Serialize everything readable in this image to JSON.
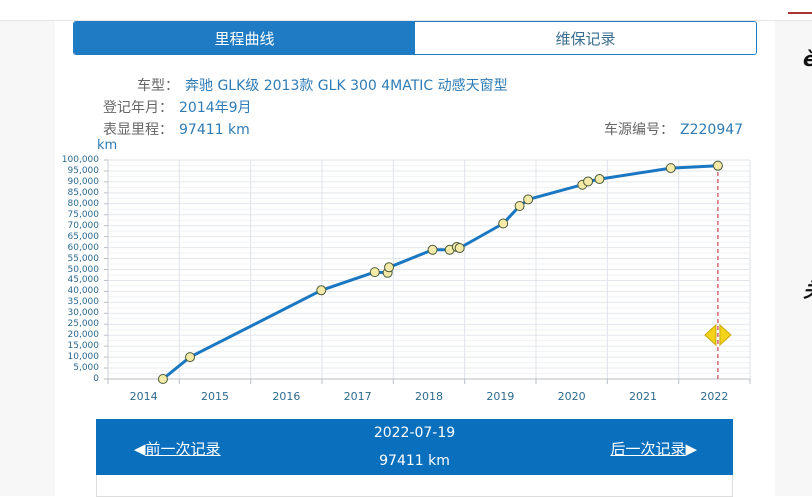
{
  "tabs": [
    {
      "label": "里程曲线",
      "active": true
    },
    {
      "label": "维保记录",
      "active": false
    }
  ],
  "vehicle": {
    "model_label": "车型：",
    "model_value": "奔驰 GLK级 2013款 GLK 300 4MATIC 动感天窗型",
    "reg_label": "登记年月：",
    "reg_value": "2014年9月",
    "odometer_label": "表显里程：",
    "odometer_value": "97411 km",
    "source_label": "车源编号：",
    "source_value": "Z220947"
  },
  "colors": {
    "accent": "#1e7bc4",
    "nav_bg": "#0a6fbd",
    "line": "#1a78c2",
    "marker_fill": "#f5eaa8",
    "marker_stroke": "#4a5a3a",
    "cursor_line": "#d0434f",
    "handle": "#f5d21a"
  },
  "chart_data": {
    "type": "line",
    "title": "",
    "xlabel": "",
    "ylabel": "km",
    "ylim": [
      0,
      100000
    ],
    "y_ticks": [
      "0",
      "5,000",
      "10,000",
      "15,000",
      "20,000",
      "25,000",
      "30,000",
      "35,000",
      "40,000",
      "45,000",
      "50,000",
      "55,000",
      "60,000",
      "65,000",
      "70,000",
      "75,000",
      "80,000",
      "85,000",
      "90,000",
      "95,000",
      "100,000"
    ],
    "x_ticks": [
      "2014",
      "2015",
      "2016",
      "2017",
      "2018",
      "2019",
      "2020",
      "2021",
      "2022"
    ],
    "xlim": [
      2014.0,
      2023.0
    ],
    "grid": true,
    "legend": "none",
    "series": [
      {
        "name": "里程",
        "x": [
          2014.77,
          2015.15,
          2016.99,
          2017.74,
          2017.92,
          2017.94,
          2018.55,
          2018.79,
          2018.89,
          2018.93,
          2019.54,
          2019.77,
          2019.89,
          2020.65,
          2020.73,
          2020.89,
          2021.89,
          2022.55
        ],
        "values": [
          0,
          10000,
          40500,
          48800,
          48500,
          51000,
          59000,
          59000,
          60300,
          59800,
          71000,
          79000,
          82000,
          88700,
          90200,
          91300,
          96300,
          97411
        ]
      }
    ],
    "cursor": {
      "x": 2022.55,
      "label_date": "2022-07-19",
      "label_value": "97411 km"
    }
  },
  "nav": {
    "prev_label": "前一次记录",
    "next_label": "后一次记录",
    "prev_arrow": "◀",
    "next_arrow": "▶",
    "date": "2022-07-19",
    "km": "97411 km"
  },
  "side": {
    "glyph1": "è",
    "glyph2": "关"
  }
}
